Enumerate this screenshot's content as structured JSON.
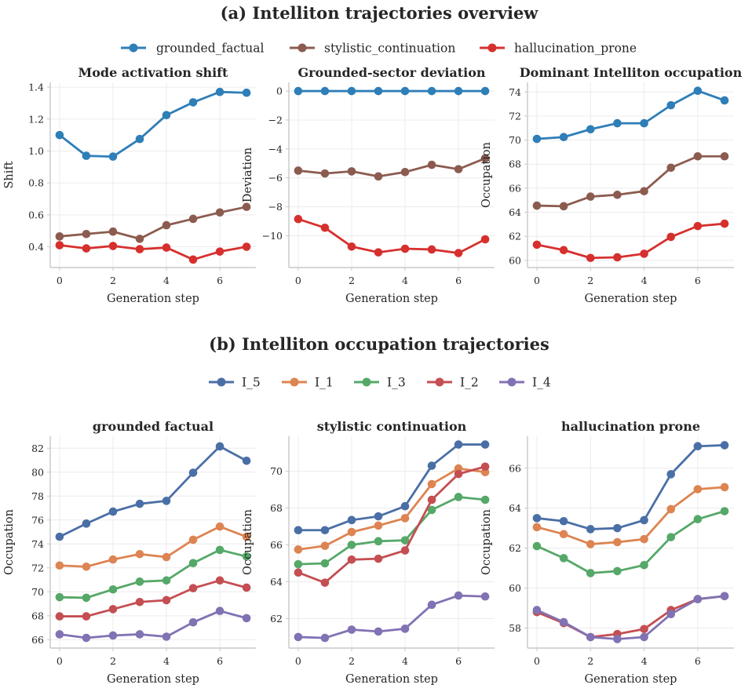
{
  "sections": [
    {
      "title": "(a) Intelliton trajectories overview",
      "legend": [
        {
          "name": "grounded_factual",
          "color": "#2e7eb8"
        },
        {
          "name": "stylistic_continuation",
          "color": "#8c5b4f"
        },
        {
          "name": "hallucination_prone",
          "color": "#d6302e"
        }
      ]
    },
    {
      "title": "(b) Intelliton occupation trajectories",
      "legend": [
        {
          "name": "I_5",
          "color": "#4a6fa6"
        },
        {
          "name": "I_1",
          "color": "#dd8452"
        },
        {
          "name": "I_3",
          "color": "#55a868"
        },
        {
          "name": "I_2",
          "color": "#c44e52"
        },
        {
          "name": "I_4",
          "color": "#8172b3"
        }
      ]
    }
  ],
  "chart_data": [
    {
      "type": "line",
      "title": "Mode activation shift",
      "xlabel": "Generation step",
      "ylabel": "Shift",
      "x": [
        0,
        1,
        2,
        3,
        4,
        5,
        6,
        7
      ],
      "xticks": [
        0,
        2,
        4,
        6
      ],
      "ylim": [
        0.27,
        1.43
      ],
      "yticks": [
        0.4,
        0.6,
        0.8,
        1.0,
        1.2,
        1.4
      ],
      "ytick_labels": [
        "0.4",
        "0.6",
        "0.8",
        "1.0",
        "1.2",
        "1.4"
      ],
      "grid": true,
      "series": [
        {
          "name": "grounded_factual",
          "color": "#2e7eb8",
          "values": [
            1.1,
            0.97,
            0.965,
            1.075,
            1.225,
            1.305,
            1.37,
            1.365
          ]
        },
        {
          "name": "stylistic_continuation",
          "color": "#8c5b4f",
          "values": [
            0.465,
            0.48,
            0.495,
            0.45,
            0.535,
            0.575,
            0.615,
            0.65
          ]
        },
        {
          "name": "hallucination_prone",
          "color": "#d6302e",
          "values": [
            0.41,
            0.39,
            0.405,
            0.385,
            0.395,
            0.32,
            0.37,
            0.4
          ]
        }
      ]
    },
    {
      "type": "line",
      "title": "Grounded-sector deviation",
      "xlabel": "Generation step",
      "ylabel": "Deviation",
      "x": [
        0,
        1,
        2,
        3,
        4,
        5,
        6,
        7
      ],
      "xticks": [
        0,
        2,
        4,
        6
      ],
      "ylim": [
        -12.2,
        0.6
      ],
      "yticks": [
        0,
        -2,
        -4,
        -6,
        -8,
        -10
      ],
      "ytick_labels": [
        "0",
        "−2",
        "−4",
        "−6",
        "−8",
        "−10"
      ],
      "grid": true,
      "series": [
        {
          "name": "grounded_factual",
          "color": "#2e7eb8",
          "values": [
            0,
            0,
            0,
            0,
            0,
            0,
            0,
            0
          ]
        },
        {
          "name": "stylistic_continuation",
          "color": "#8c5b4f",
          "values": [
            -5.5,
            -5.7,
            -5.55,
            -5.9,
            -5.6,
            -5.1,
            -5.4,
            -4.65
          ]
        },
        {
          "name": "hallucination_prone",
          "color": "#d6302e",
          "values": [
            -8.85,
            -9.45,
            -10.75,
            -11.15,
            -10.9,
            -10.95,
            -11.2,
            -10.25
          ]
        }
      ]
    },
    {
      "type": "line",
      "title": "Dominant Intelliton occupation",
      "xlabel": "Generation step",
      "ylabel": "Occupation",
      "x": [
        0,
        1,
        2,
        3,
        4,
        5,
        6,
        7
      ],
      "xticks": [
        0,
        2,
        4,
        6
      ],
      "ylim": [
        59.4,
        74.8
      ],
      "yticks": [
        60,
        62,
        64,
        66,
        68,
        70,
        72,
        74
      ],
      "ytick_labels": [
        "60",
        "62",
        "64",
        "66",
        "68",
        "70",
        "72",
        "74"
      ],
      "grid": true,
      "series": [
        {
          "name": "grounded_factual",
          "color": "#2e7eb8",
          "values": [
            70.1,
            70.25,
            70.9,
            71.4,
            71.4,
            72.9,
            74.1,
            73.3
          ]
        },
        {
          "name": "stylistic_continuation",
          "color": "#8c5b4f",
          "values": [
            64.55,
            64.5,
            65.3,
            65.45,
            65.75,
            67.7,
            68.65,
            68.65
          ]
        },
        {
          "name": "hallucination_prone",
          "color": "#d6302e",
          "values": [
            61.3,
            60.85,
            60.2,
            60.25,
            60.55,
            61.95,
            62.85,
            63.05
          ]
        }
      ]
    },
    {
      "type": "line",
      "title": "grounded factual",
      "xlabel": "Generation step",
      "ylabel": "Occupation",
      "x": [
        0,
        1,
        2,
        3,
        4,
        5,
        6,
        7
      ],
      "xticks": [
        0,
        2,
        4,
        6
      ],
      "ylim": [
        65.3,
        83.0
      ],
      "yticks": [
        66,
        68,
        70,
        72,
        74,
        76,
        78,
        80,
        82
      ],
      "ytick_labels": [
        "66",
        "68",
        "70",
        "72",
        "74",
        "76",
        "78",
        "80",
        "82"
      ],
      "grid": true,
      "series": [
        {
          "name": "I_5",
          "color": "#4a6fa6",
          "values": [
            74.6,
            75.7,
            76.7,
            77.35,
            77.6,
            79.95,
            82.15,
            80.95
          ]
        },
        {
          "name": "I_1",
          "color": "#dd8452",
          "values": [
            72.2,
            72.1,
            72.7,
            73.15,
            72.9,
            74.35,
            75.45,
            74.6
          ]
        },
        {
          "name": "I_3",
          "color": "#55a868",
          "values": [
            69.55,
            69.5,
            70.2,
            70.85,
            70.95,
            72.4,
            73.5,
            72.95
          ]
        },
        {
          "name": "I_2",
          "color": "#c44e52",
          "values": [
            67.95,
            67.95,
            68.55,
            69.15,
            69.3,
            70.3,
            70.95,
            70.35
          ]
        },
        {
          "name": "I_4",
          "color": "#8172b3",
          "values": [
            66.45,
            66.15,
            66.35,
            66.45,
            66.25,
            67.45,
            68.4,
            67.8
          ]
        }
      ]
    },
    {
      "type": "line",
      "title": "stylistic continuation",
      "xlabel": "Generation step",
      "ylabel": "Occupation",
      "x": [
        0,
        1,
        2,
        3,
        4,
        5,
        6,
        7
      ],
      "xticks": [
        0,
        2,
        4,
        6
      ],
      "ylim": [
        60.4,
        71.9
      ],
      "yticks": [
        62,
        64,
        66,
        68,
        70
      ],
      "ytick_labels": [
        "62",
        "64",
        "66",
        "68",
        "70"
      ],
      "grid": true,
      "series": [
        {
          "name": "I_5",
          "color": "#4a6fa6",
          "values": [
            66.8,
            66.8,
            67.35,
            67.55,
            68.1,
            70.3,
            71.45,
            71.45
          ]
        },
        {
          "name": "I_1",
          "color": "#dd8452",
          "values": [
            65.75,
            65.95,
            66.7,
            67.05,
            67.45,
            69.3,
            70.15,
            69.95
          ]
        },
        {
          "name": "I_3",
          "color": "#55a868",
          "values": [
            64.95,
            65.0,
            66.0,
            66.2,
            66.25,
            67.9,
            68.6,
            68.45
          ]
        },
        {
          "name": "I_2",
          "color": "#c44e52",
          "values": [
            64.5,
            63.95,
            65.2,
            65.25,
            65.7,
            68.45,
            69.85,
            70.25
          ]
        },
        {
          "name": "I_4",
          "color": "#8172b3",
          "values": [
            61.0,
            60.95,
            61.4,
            61.3,
            61.45,
            62.75,
            63.25,
            63.2
          ]
        }
      ]
    },
    {
      "type": "line",
      "title": "hallucination prone",
      "xlabel": "Generation step",
      "ylabel": "Occupation",
      "x": [
        0,
        1,
        2,
        3,
        4,
        5,
        6,
        7
      ],
      "xticks": [
        0,
        2,
        4,
        6
      ],
      "ylim": [
        57.0,
        67.6
      ],
      "yticks": [
        58,
        60,
        62,
        64,
        66
      ],
      "ytick_labels": [
        "58",
        "60",
        "62",
        "64",
        "66"
      ],
      "grid": true,
      "series": [
        {
          "name": "I_5",
          "color": "#4a6fa6",
          "values": [
            63.5,
            63.35,
            62.95,
            63.0,
            63.4,
            65.7,
            67.1,
            67.15
          ]
        },
        {
          "name": "I_1",
          "color": "#dd8452",
          "values": [
            63.05,
            62.7,
            62.2,
            62.3,
            62.45,
            63.95,
            64.95,
            65.05
          ]
        },
        {
          "name": "I_3",
          "color": "#55a868",
          "values": [
            62.1,
            61.5,
            60.75,
            60.85,
            61.15,
            62.55,
            63.45,
            63.85
          ]
        },
        {
          "name": "I_2",
          "color": "#c44e52",
          "values": [
            58.8,
            58.25,
            57.55,
            57.7,
            57.95,
            58.9,
            59.45,
            59.6
          ]
        },
        {
          "name": "I_4",
          "color": "#8172b3",
          "values": [
            58.9,
            58.3,
            57.55,
            57.45,
            57.55,
            58.7,
            59.45,
            59.6
          ]
        }
      ]
    }
  ]
}
